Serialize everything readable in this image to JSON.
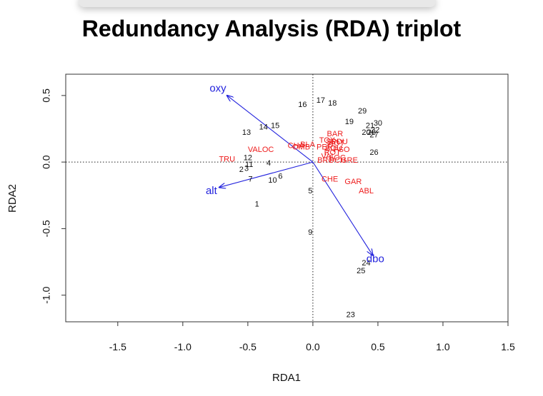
{
  "page_title": "Redundancy Analysis (RDA) triplot",
  "chart_data": {
    "type": "scatter",
    "title": "Redundancy Analysis (RDA) triplot",
    "xlabel": "RDA1",
    "ylabel": "RDA2",
    "xlim": [
      -1.9,
      1.5
    ],
    "ylim": [
      -1.2,
      0.66
    ],
    "xticks": [
      -1.5,
      -1.0,
      -0.5,
      0.0,
      0.5,
      1.0,
      1.5
    ],
    "xtick_labels": [
      "-1.5",
      "-1.0",
      "-0.5",
      "0.0",
      "0.5",
      "1.0",
      "1.5"
    ],
    "yticks": [
      -1.0,
      -0.5,
      0.0,
      0.5
    ],
    "ytick_labels": [
      "-1.0",
      "-0.5",
      "0.0",
      "0.5"
    ],
    "grid": false,
    "reference_lines": [
      0,
      0
    ],
    "colors": {
      "sites": "#111111",
      "species": "#ee1c1c",
      "env": "#2222dd"
    },
    "sites": [
      {
        "label": "1",
        "x": -0.43,
        "y": -0.32
      },
      {
        "label": "2",
        "x": -0.55,
        "y": -0.06
      },
      {
        "label": "3",
        "x": -0.51,
        "y": -0.05
      },
      {
        "label": "4",
        "x": -0.34,
        "y": -0.01
      },
      {
        "label": "5",
        "x": -0.02,
        "y": -0.22
      },
      {
        "label": "6",
        "x": -0.25,
        "y": -0.11
      },
      {
        "label": "7",
        "x": -0.48,
        "y": -0.13
      },
      {
        "label": "9",
        "x": -0.02,
        "y": -0.53
      },
      {
        "label": "10",
        "x": -0.31,
        "y": -0.14
      },
      {
        "label": "11",
        "x": -0.49,
        "y": -0.02
      },
      {
        "label": "12",
        "x": -0.5,
        "y": 0.03
      },
      {
        "label": "13",
        "x": -0.51,
        "y": 0.22
      },
      {
        "label": "14",
        "x": -0.38,
        "y": 0.26
      },
      {
        "label": "15",
        "x": -0.29,
        "y": 0.27
      },
      {
        "label": "16",
        "x": -0.08,
        "y": 0.43
      },
      {
        "label": "17",
        "x": 0.06,
        "y": 0.46
      },
      {
        "label": "18",
        "x": 0.15,
        "y": 0.44
      },
      {
        "label": "19",
        "x": 0.28,
        "y": 0.3
      },
      {
        "label": "20",
        "x": 0.41,
        "y": 0.22
      },
      {
        "label": "21",
        "x": 0.44,
        "y": 0.27
      },
      {
        "label": "22",
        "x": 0.48,
        "y": 0.24
      },
      {
        "label": "23",
        "x": 0.29,
        "y": -1.15
      },
      {
        "label": "24",
        "x": 0.41,
        "y": -0.76
      },
      {
        "label": "25",
        "x": 0.37,
        "y": -0.82
      },
      {
        "label": "26",
        "x": 0.47,
        "y": 0.07
      },
      {
        "label": "27",
        "x": 0.47,
        "y": 0.2
      },
      {
        "label": "28",
        "x": 0.45,
        "y": 0.22
      },
      {
        "label": "29",
        "x": 0.38,
        "y": 0.38
      },
      {
        "label": "30",
        "x": 0.5,
        "y": 0.29
      }
    ],
    "species": [
      {
        "label": "TRU",
        "x": -0.66,
        "y": 0.02
      },
      {
        "label": "VALOC",
        "x": -0.4,
        "y": 0.09
      },
      {
        "label": "CHA",
        "x": -0.13,
        "y": 0.12
      },
      {
        "label": "OMB",
        "x": -0.09,
        "y": 0.11
      },
      {
        "label": "BLA",
        "x": -0.04,
        "y": 0.13
      },
      {
        "label": "BAR",
        "x": 0.17,
        "y": 0.21
      },
      {
        "label": "TOX",
        "x": 0.11,
        "y": 0.16
      },
      {
        "label": "SPI",
        "x": 0.15,
        "y": 0.15
      },
      {
        "label": "HOT",
        "x": 0.18,
        "y": 0.14
      },
      {
        "label": "GOU",
        "x": 0.2,
        "y": 0.15
      },
      {
        "label": "PER",
        "x": 0.09,
        "y": 0.11
      },
      {
        "label": "BOU",
        "x": 0.16,
        "y": 0.1
      },
      {
        "label": "PSO",
        "x": 0.22,
        "y": 0.09
      },
      {
        "label": "ROT",
        "x": 0.15,
        "y": 0.07
      },
      {
        "label": "VAI",
        "x": 0.11,
        "y": 0.04
      },
      {
        "label": "LOC",
        "x": 0.19,
        "y": 0.03
      },
      {
        "label": "BRO",
        "x": 0.1,
        "y": 0.01
      },
      {
        "label": "PCH",
        "x": 0.19,
        "y": 0.01
      },
      {
        "label": "GRE",
        "x": 0.28,
        "y": 0.01
      },
      {
        "label": "CHE",
        "x": 0.13,
        "y": -0.13
      },
      {
        "label": "GAR",
        "x": 0.31,
        "y": -0.15
      },
      {
        "label": "ABL",
        "x": 0.41,
        "y": -0.22
      }
    ],
    "env": [
      {
        "label": "oxy",
        "x": -0.66,
        "y": 0.5,
        "label_x": -0.73,
        "label_y": 0.55
      },
      {
        "label": "alt",
        "x": -0.72,
        "y": -0.19,
        "label_x": -0.78,
        "label_y": -0.22
      },
      {
        "label": "dbo",
        "x": 0.46,
        "y": -0.7,
        "label_x": 0.48,
        "label_y": -0.73
      }
    ]
  }
}
